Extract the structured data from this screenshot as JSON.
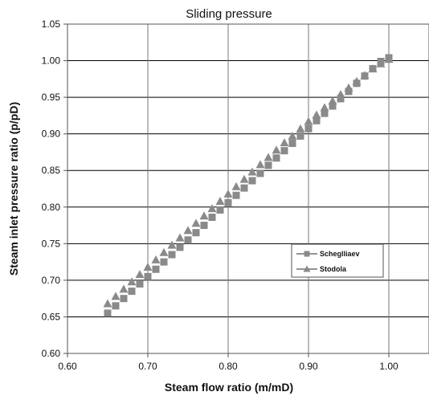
{
  "chart_data": {
    "type": "scatter",
    "title": "Sliding pressure",
    "xlabel": "Steam flow ratio (m/mD)",
    "ylabel": "Steam inlet pressure ratio (p/pD)",
    "xlim": [
      0.6,
      1.05
    ],
    "ylim": [
      0.6,
      1.05
    ],
    "xticks": [
      "0.60",
      "0.70",
      "0.80",
      "0.90",
      "1.00"
    ],
    "yticks": [
      "0.60",
      "0.65",
      "0.70",
      "0.75",
      "0.80",
      "0.85",
      "0.90",
      "0.95",
      "1.00",
      "1.05"
    ],
    "grid": true,
    "legend_position": "right-center",
    "series": [
      {
        "name": "Scheglliaev",
        "marker": "square",
        "color": "#8a8a8a",
        "x": [
          0.65,
          0.66,
          0.67,
          0.68,
          0.69,
          0.7,
          0.71,
          0.72,
          0.73,
          0.74,
          0.75,
          0.76,
          0.77,
          0.78,
          0.79,
          0.8,
          0.81,
          0.82,
          0.83,
          0.84,
          0.85,
          0.86,
          0.87,
          0.88,
          0.89,
          0.9,
          0.91,
          0.92,
          0.93,
          0.94,
          0.95,
          0.96,
          0.97,
          0.98,
          0.99,
          1.0
        ],
        "y": [
          0.655,
          0.665,
          0.675,
          0.685,
          0.695,
          0.705,
          0.715,
          0.725,
          0.735,
          0.745,
          0.755,
          0.765,
          0.775,
          0.786,
          0.796,
          0.806,
          0.816,
          0.826,
          0.836,
          0.846,
          0.857,
          0.867,
          0.877,
          0.887,
          0.897,
          0.907,
          0.918,
          0.928,
          0.938,
          0.948,
          0.958,
          0.969,
          0.979,
          0.989,
          0.999,
          1.004
        ]
      },
      {
        "name": "Stodola",
        "marker": "triangle",
        "color": "#8a8a8a",
        "x": [
          0.65,
          0.66,
          0.67,
          0.68,
          0.69,
          0.7,
          0.71,
          0.72,
          0.73,
          0.74,
          0.75,
          0.76,
          0.77,
          0.78,
          0.79,
          0.8,
          0.81,
          0.82,
          0.83,
          0.84,
          0.85,
          0.86,
          0.87,
          0.88,
          0.89,
          0.9,
          0.91,
          0.92,
          0.93,
          0.94,
          0.95,
          0.96,
          0.97,
          0.98,
          0.99,
          1.0
        ],
        "y": [
          0.668,
          0.678,
          0.688,
          0.698,
          0.708,
          0.718,
          0.728,
          0.738,
          0.748,
          0.758,
          0.768,
          0.778,
          0.788,
          0.798,
          0.808,
          0.818,
          0.828,
          0.838,
          0.848,
          0.858,
          0.868,
          0.878,
          0.888,
          0.897,
          0.907,
          0.917,
          0.926,
          0.936,
          0.945,
          0.954,
          0.963,
          0.972,
          0.98,
          0.989,
          0.996,
          1.002
        ]
      }
    ]
  }
}
